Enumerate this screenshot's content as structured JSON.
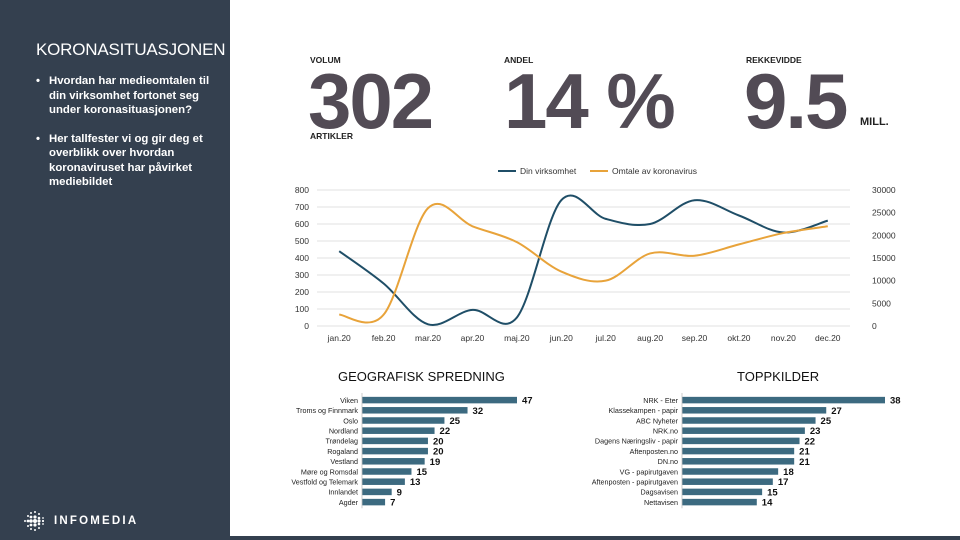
{
  "sidebar": {
    "title": "KORONASITUASJONEN",
    "bullets": [
      "Hvordan har medieomtalen til din virksomhet fortonet seg under koronasituasjonen?",
      "Her tallfester vi og gir deg et overblikk over hvordan koronaviruset har påvirket mediebildet"
    ],
    "logo_text": "INFOMEDIA"
  },
  "kpis": {
    "volum": {
      "label": "VOLUM",
      "value": "302",
      "unit": "ARTIKLER"
    },
    "andel": {
      "label": "ANDEL",
      "value": "14 %"
    },
    "rekkevidde": {
      "label": "REKKEVIDDE",
      "value": "9.5",
      "unit": "MILL."
    }
  },
  "colors": {
    "navy": "#1f4e67",
    "orange": "#e8a33a",
    "bar": "#3c6a80",
    "sidebar": "#34404f",
    "kpi": "#524b55"
  },
  "chart_data": [
    {
      "type": "line",
      "categories": [
        "jan.20",
        "feb.20",
        "mar.20",
        "apr.20",
        "maj.20",
        "jun.20",
        "jul.20",
        "aug.20",
        "sep.20",
        "okt.20",
        "nov.20",
        "dec.20"
      ],
      "series": [
        {
          "name": "Din virksomhet",
          "axis": "left",
          "values": [
            440,
            250,
            10,
            95,
            50,
            740,
            630,
            600,
            740,
            650,
            550,
            620
          ]
        },
        {
          "name": "Omtale av koronavirus",
          "axis": "right",
          "values": [
            2500,
            2500,
            26000,
            22000,
            18500,
            12000,
            10000,
            16000,
            15500,
            18000,
            20500,
            22000
          ]
        }
      ],
      "y_left": {
        "ylim": [
          0,
          800
        ],
        "ticks": [
          "0",
          "100",
          "200",
          "300",
          "400",
          "500",
          "600",
          "700",
          "800"
        ]
      },
      "y_right": {
        "ylim": [
          0,
          30000
        ],
        "ticks": [
          "0",
          "5000",
          "10000",
          "15000",
          "20000",
          "25000",
          "30000"
        ]
      },
      "legend": "top",
      "grid": true
    },
    {
      "type": "bar",
      "orientation": "horizontal",
      "title": "GEOGRAFISK SPREDNING",
      "categories": [
        "Viken",
        "Troms og Finnmark",
        "Oslo",
        "Nordland",
        "Trøndelag",
        "Rogaland",
        "Vestland",
        "Møre og Romsdal",
        "Vestfold og Telemark",
        "Innlandet",
        "Agder"
      ],
      "values": [
        47,
        32,
        25,
        22,
        20,
        20,
        19,
        15,
        13,
        9,
        7
      ]
    },
    {
      "type": "bar",
      "orientation": "horizontal",
      "title": "TOPPKILDER",
      "categories": [
        "NRK - Eter",
        "Klassekampen - papir",
        "ABC Nyheter",
        "NRK.no",
        "Dagens Næringsliv - papir",
        "Aftenposten.no",
        "DN.no",
        "VG - papirutgaven",
        "Aftenposten - papirutgaven",
        "Dagsavisen",
        "Nettavisen"
      ],
      "values": [
        38,
        27,
        25,
        23,
        22,
        21,
        21,
        18,
        17,
        15,
        14
      ]
    }
  ]
}
